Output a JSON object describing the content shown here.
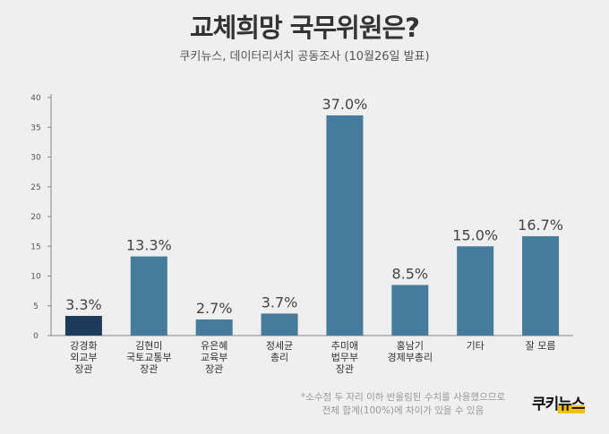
{
  "title": "교체희망 국무위원은?",
  "subtitle": "쿠키뉴스, 데이터리서치 공동조사 (10월26일 발표)",
  "chart_data": {
    "type": "bar",
    "categories": [
      [
        "강경화",
        "외교부",
        "장관"
      ],
      [
        "김현미",
        "국토교통부",
        "장관"
      ],
      [
        "유은혜",
        "교육부",
        "장관"
      ],
      [
        "정세균",
        "총리"
      ],
      [
        "추미애",
        "법무부",
        "장관"
      ],
      [
        "홍남기",
        "경제부총리"
      ],
      [
        "기타"
      ],
      [
        "잘 모름"
      ]
    ],
    "values": [
      3.3,
      13.3,
      2.7,
      3.7,
      37.0,
      8.5,
      15.0,
      16.7
    ],
    "value_labels": [
      "3.3%",
      "13.3%",
      "2.7%",
      "3.7%",
      "37.0%",
      "8.5%",
      "15.0%",
      "16.7%"
    ],
    "yticks": [
      0,
      5,
      10,
      15,
      20,
      25,
      30,
      35,
      40
    ],
    "ylim": [
      0,
      40
    ],
    "colors": [
      "#1f3b5c",
      "#467b9c",
      "#467b9c",
      "#467b9c",
      "#467b9c",
      "#467b9c",
      "#467b9c",
      "#467b9c"
    ],
    "grid": false
  },
  "footnote": [
    "*소수점 두 자리 이하 반올림된 수치를 사용했으므로",
    "전체 합계(100%)에 차이가 있을 수 있음"
  ],
  "logo": {
    "part1": "쿠키",
    "part2": "뉴스"
  }
}
